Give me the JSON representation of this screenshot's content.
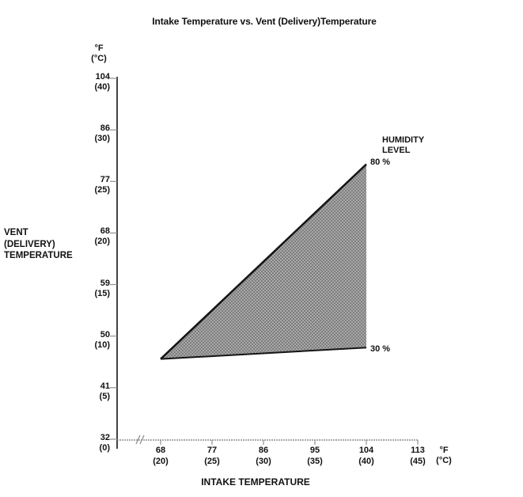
{
  "title": "Intake Temperature vs. Vent (Delivery)Temperature",
  "y_axis": {
    "unit_lines": [
      "°F",
      "(°C)"
    ],
    "side_label_lines": [
      "VENT",
      "(DELIVERY)",
      "TEMPERATURE"
    ],
    "ticks": [
      {
        "f": "104",
        "c": "(40)"
      },
      {
        "f": "86",
        "c": "(30)"
      },
      {
        "f": "77",
        "c": "(25)"
      },
      {
        "f": "68",
        "c": "(20)"
      },
      {
        "f": "59",
        "c": "(15)"
      },
      {
        "f": "50",
        "c": "(10)"
      },
      {
        "f": "41",
        "c": "(5)"
      },
      {
        "f": "32",
        "c": "(0)"
      }
    ]
  },
  "x_axis": {
    "bottom_label": "INTAKE TEMPERATURE",
    "unit_lines": [
      "°F",
      "(°C)"
    ],
    "ticks": [
      {
        "f": "68",
        "c": "(20)"
      },
      {
        "f": "77",
        "c": "(25)"
      },
      {
        "f": "86",
        "c": "(30)"
      },
      {
        "f": "95",
        "c": "(35)"
      },
      {
        "f": "104",
        "c": "(40)"
      },
      {
        "f": "113",
        "c": "(45)"
      }
    ]
  },
  "annotations": {
    "legend_title_lines": [
      "HUMIDITY",
      "LEVEL"
    ],
    "upper_line_label": "80 %",
    "lower_line_label": "30 %"
  },
  "colors": {
    "region_fill_light": "#a9a9a9",
    "region_fill_dark": "#7d7d7d",
    "line": "#151515",
    "axis_dark": "#222222",
    "axis_light": "#8f8f8f",
    "text": "#111111",
    "background": "#ffffff"
  },
  "chart_data": {
    "type": "area",
    "title": "Intake Temperature vs. Vent (Delivery)Temperature",
    "xlabel": "INTAKE TEMPERATURE (°F / °C)",
    "ylabel": "VENT (DELIVERY) TEMPERATURE (°F / °C)",
    "x_ticks_f": [
      68,
      77,
      86,
      95,
      104,
      113
    ],
    "x_ticks_c": [
      20,
      25,
      30,
      35,
      40,
      45
    ],
    "y_ticks_f": [
      32,
      41,
      50,
      59,
      68,
      77,
      86,
      104
    ],
    "y_ticks_c": [
      0,
      5,
      10,
      15,
      20,
      25,
      30,
      40
    ],
    "xlim_f": [
      68,
      113
    ],
    "ylim_f": [
      32,
      104
    ],
    "grid": false,
    "note": "Shaded band between 30 % and 80 % humidity-level lines; y-axis jumps from 86 to 104 (no 95 tick). X-axis has a break between origin and 68.",
    "series": [
      {
        "name": "80 %",
        "points_f": [
          [
            68,
            46
          ],
          [
            104,
            80
          ]
        ]
      },
      {
        "name": "30 %",
        "points_f": [
          [
            68,
            46
          ],
          [
            104,
            48
          ]
        ]
      }
    ],
    "shaded_between": [
      "80 %",
      "30 %"
    ]
  }
}
